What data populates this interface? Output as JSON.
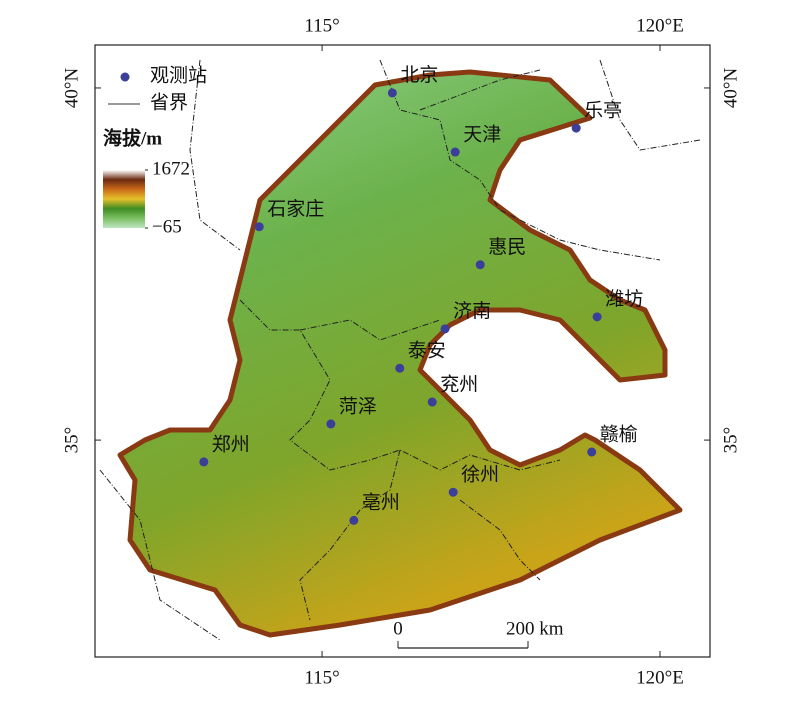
{
  "map": {
    "lon_lim": [
      111.64,
      120.74
    ],
    "lat_lim": [
      31.92,
      40.61
    ],
    "lon_ticks": [
      {
        "value": 115,
        "label": "115°"
      },
      {
        "value": 120,
        "label": "120°E"
      }
    ],
    "lat_ticks": [
      {
        "value": 40,
        "label": "40°N"
      },
      {
        "value": 35,
        "label": "35°"
      }
    ],
    "legend": {
      "station": "观测站",
      "boundary": "省界",
      "elevation_title": "海拔/m"
    },
    "elevation": {
      "colors": [
        "#ffffff",
        "#6b2a10",
        "#c96a1a",
        "#e7c12a",
        "#3f8d24",
        "#7cc063",
        "#bfe6c4"
      ],
      "ticks": [
        1672,
        {
          "value": -65,
          "label": "−65"
        }
      ]
    },
    "scale_bar": {
      "ticks": [
        0,
        {
          "value": 200,
          "label": "200 km"
        }
      ]
    },
    "station_color": "#3b3f99",
    "stations": [
      {
        "name": "北京",
        "lon": 116.04,
        "lat": 39.93
      },
      {
        "name": "乐亭",
        "lon": 118.76,
        "lat": 39.43
      },
      {
        "name": "天津",
        "lon": 116.97,
        "lat": 39.09
      },
      {
        "name": "石家庄",
        "lon": 114.07,
        "lat": 38.03
      },
      {
        "name": "惠民",
        "lon": 117.34,
        "lat": 37.49
      },
      {
        "name": "潍坊",
        "lon": 119.07,
        "lat": 36.75
      },
      {
        "name": "济南",
        "lon": 116.82,
        "lat": 36.58
      },
      {
        "name": "泰安",
        "lon": 116.15,
        "lat": 36.02
      },
      {
        "name": "兖州",
        "lon": 116.63,
        "lat": 35.54
      },
      {
        "name": "菏泽",
        "lon": 115.13,
        "lat": 35.23
      },
      {
        "name": "郑州",
        "lon": 113.25,
        "lat": 34.69
      },
      {
        "name": "赣榆",
        "lon": 118.99,
        "lat": 34.83
      },
      {
        "name": "徐州",
        "lon": 116.94,
        "lat": 34.26
      },
      {
        "name": "亳州",
        "lon": 115.47,
        "lat": 33.86
      }
    ]
  }
}
